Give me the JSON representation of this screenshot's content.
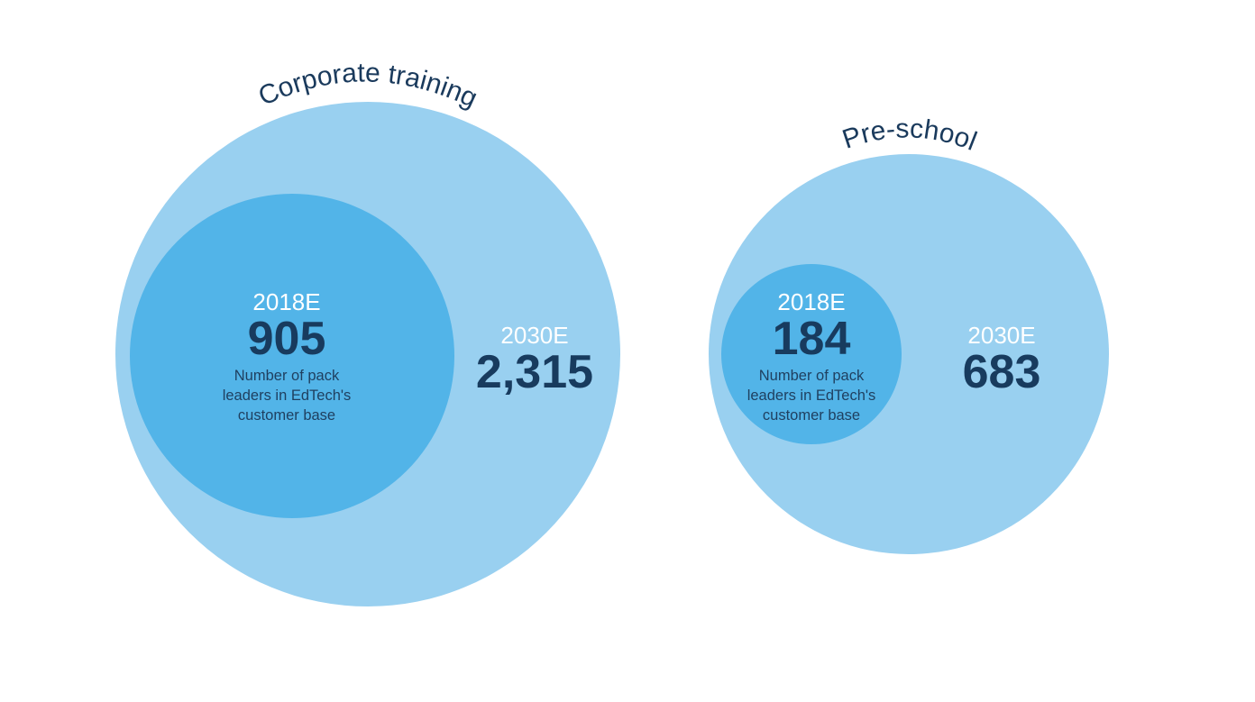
{
  "chart_data": {
    "type": "bubble",
    "colors": {
      "outer": "#99d0f0",
      "inner": "#52b4e8",
      "text_dark": "#183b5e",
      "text_light": "#ffffff"
    },
    "groups": [
      {
        "title": "Corporate training",
        "inner": {
          "year": "2018E",
          "value": 905,
          "value_label": "905",
          "description": [
            "Number of pack",
            "leaders in EdTech's",
            "customer base"
          ]
        },
        "outer": {
          "year": "2030E",
          "value": 2315,
          "value_label": "2,315"
        }
      },
      {
        "title": "Pre-school",
        "inner": {
          "year": "2018E",
          "value": 184,
          "value_label": "184",
          "description": [
            "Number of pack",
            "leaders in EdTech's",
            "customer base"
          ]
        },
        "outer": {
          "year": "2030E",
          "value": 683,
          "value_label": "683"
        }
      }
    ]
  }
}
